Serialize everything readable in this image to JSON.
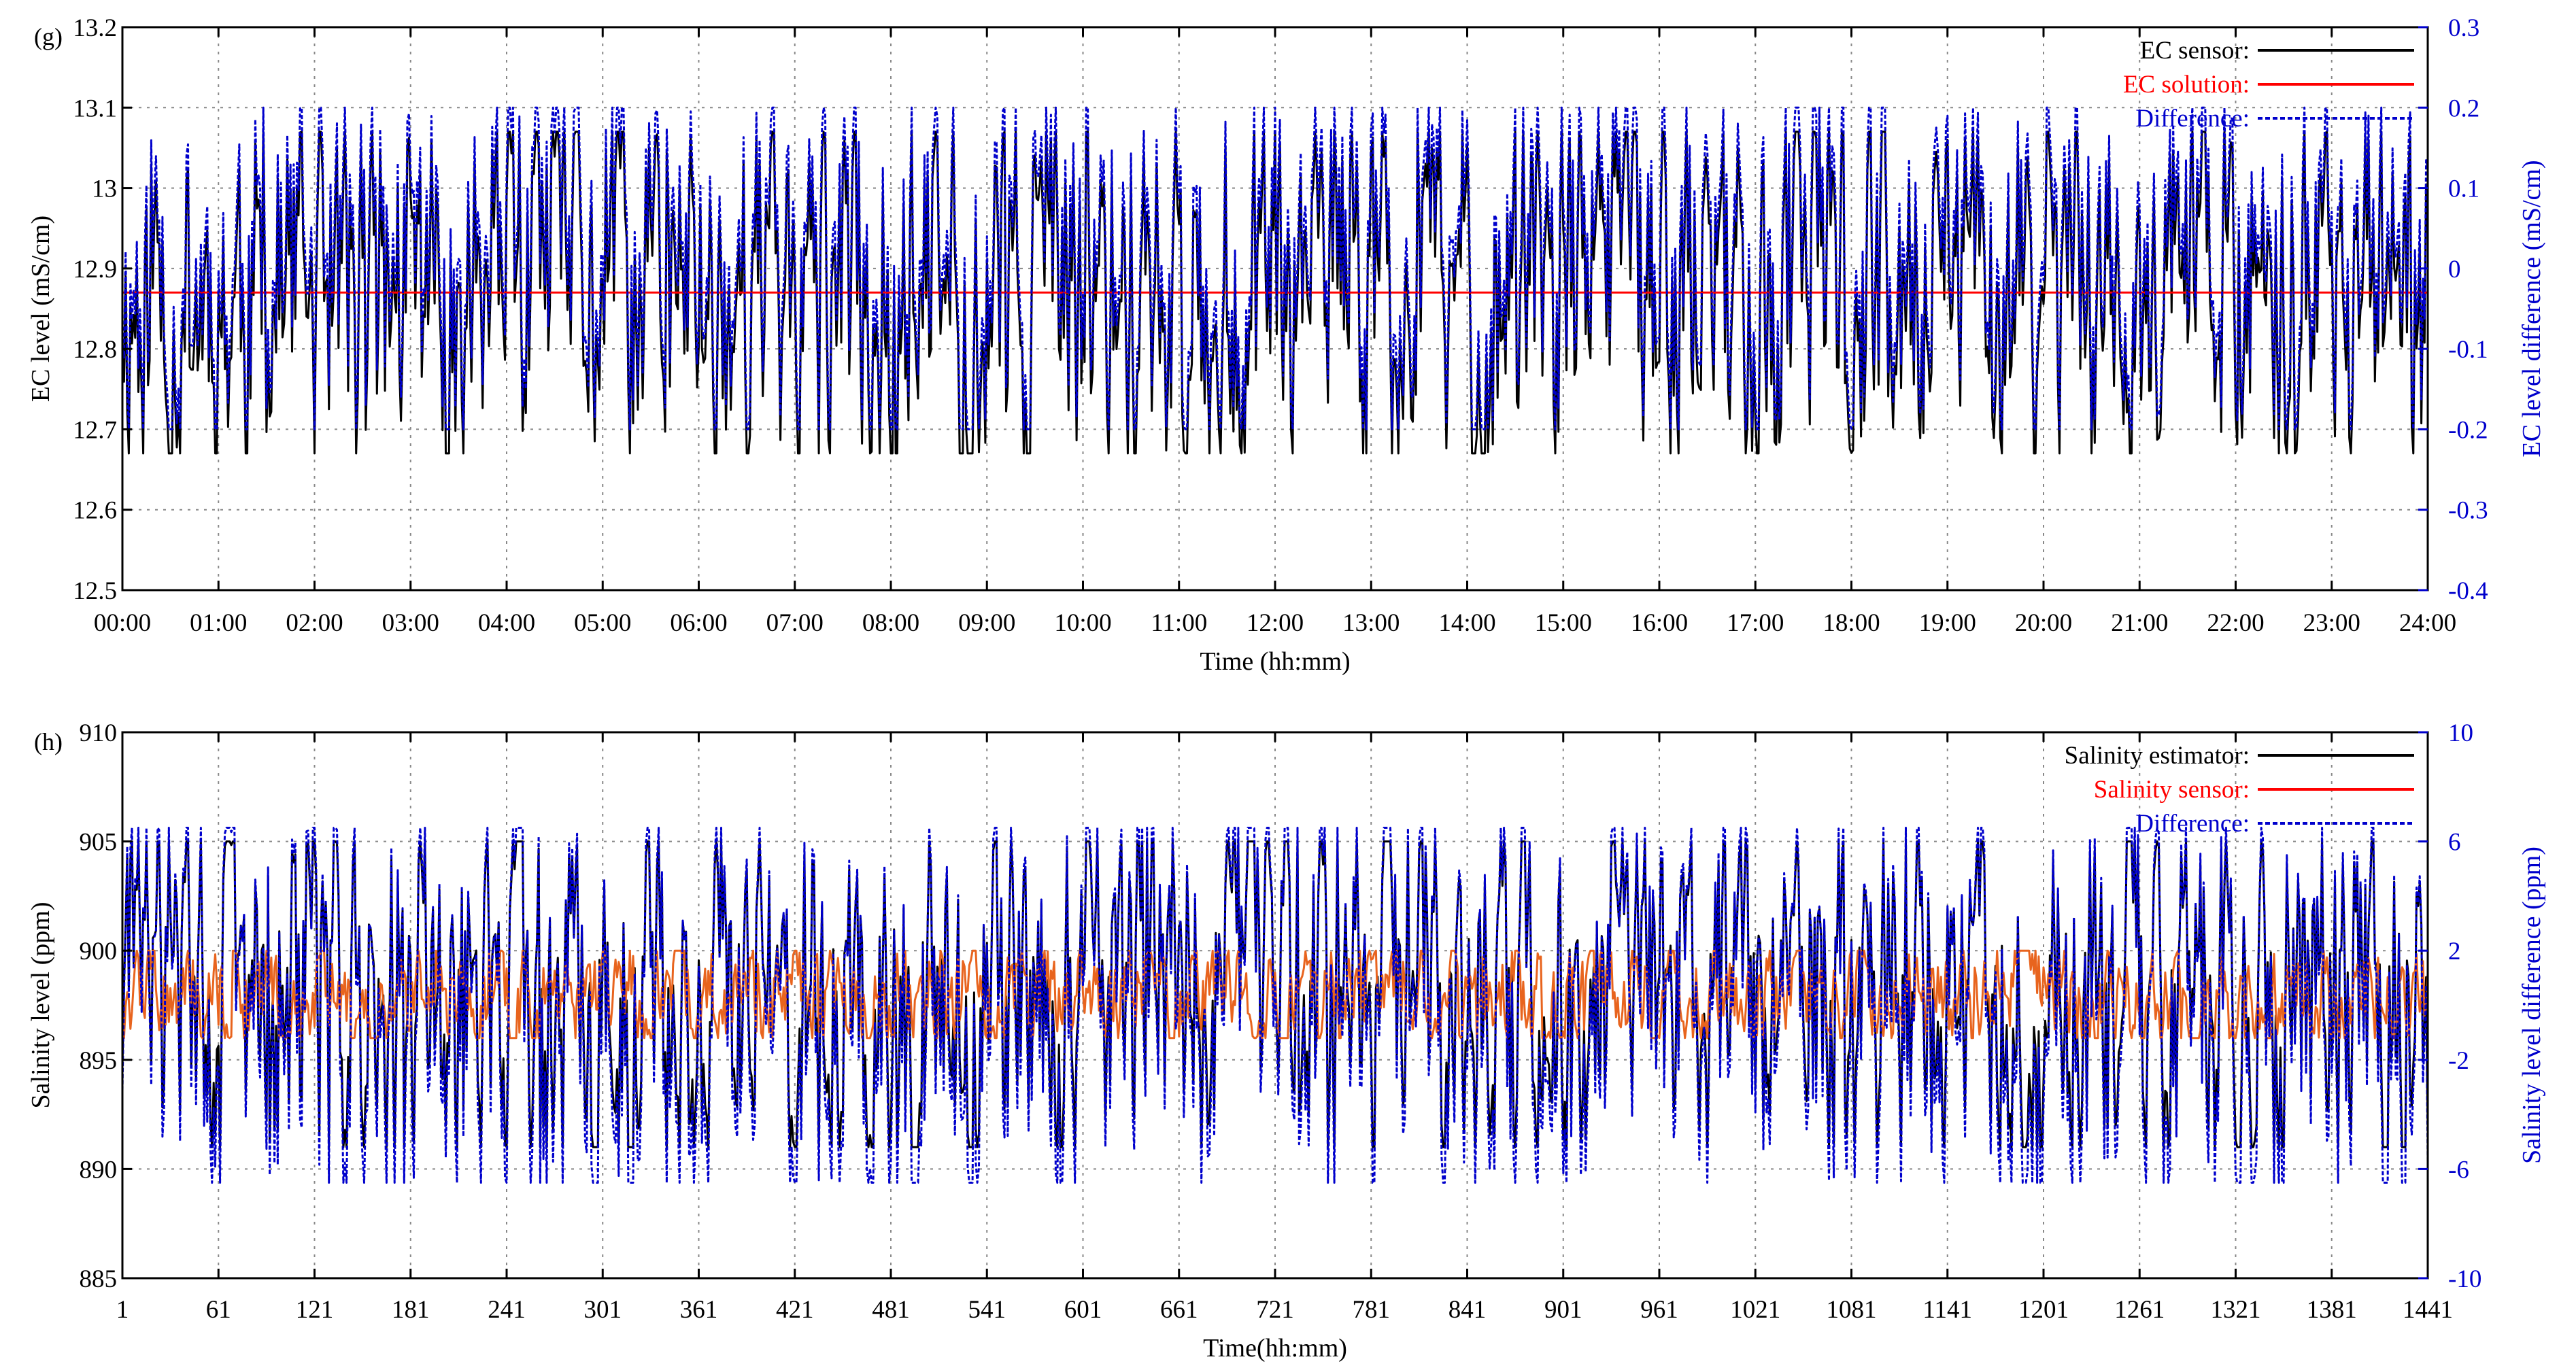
{
  "chart_data": [
    {
      "type": "line",
      "panel_label": "(g)",
      "xlabel": "Time (hh:mm)",
      "ylabel": "EC level (mS/cm)",
      "y2label": "EC level difference (mS/cm)",
      "x_ticks": [
        "00:00",
        "01:00",
        "02:00",
        "03:00",
        "04:00",
        "05:00",
        "06:00",
        "07:00",
        "08:00",
        "09:00",
        "10:00",
        "11:00",
        "12:00",
        "13:00",
        "14:00",
        "15:00",
        "16:00",
        "17:00",
        "18:00",
        "19:00",
        "20:00",
        "21:00",
        "22:00",
        "23:00",
        "24:00"
      ],
      "xlim": [
        0,
        24
      ],
      "ylim": [
        12.5,
        13.2
      ],
      "y_ticks": [
        "12.5",
        "12.6",
        "12.7",
        "12.8",
        "12.9",
        "13",
        "13.1",
        "13.2"
      ],
      "y2lim": [
        -0.4,
        0.3
      ],
      "y2_ticks": [
        "-0.4",
        "-0.3",
        "-0.2",
        "-0.1",
        "0",
        "0.1",
        "0.2",
        "0.3"
      ],
      "grid": true,
      "legend_position": "top-right",
      "series": [
        {
          "name": "EC sensor:",
          "axis": "left",
          "color": "#000000",
          "style": "solid",
          "mean": 12.87,
          "amplitude": 0.2,
          "seed": 11
        },
        {
          "name": "EC solution:",
          "axis": "left",
          "color": "#ff0000",
          "style": "solid",
          "constant": 12.87
        },
        {
          "name": "Difference:",
          "axis": "right",
          "color": "#0000cc",
          "style": "dashed",
          "mean": 0.0,
          "amplitude": 0.2,
          "seed": 11
        }
      ]
    },
    {
      "type": "line",
      "panel_label": "(h)",
      "xlabel": "Time(hh:mm)",
      "ylabel": "Salinity level (ppm)",
      "y2label": "Salinity level difference (ppm)",
      "x_ticks": [
        "1",
        "61",
        "121",
        "181",
        "241",
        "301",
        "361",
        "421",
        "481",
        "541",
        "601",
        "661",
        "721",
        "781",
        "841",
        "901",
        "961",
        "1021",
        "1081",
        "1141",
        "1201",
        "1261",
        "1321",
        "1381",
        "1441"
      ],
      "xlim": [
        1,
        1441
      ],
      "ylim": [
        885,
        910
      ],
      "y_ticks": [
        "885",
        "890",
        "895",
        "900",
        "905",
        "910"
      ],
      "y2lim": [
        -10,
        10
      ],
      "y2_ticks": [
        "-10",
        "-6",
        "-2",
        "2",
        "6",
        "10"
      ],
      "grid": true,
      "legend_position": "top-right",
      "series": [
        {
          "name": "Salinity estimator:",
          "axis": "left",
          "color": "#000000",
          "style": "solid",
          "mean": 898,
          "amplitude": 7,
          "seed": 29
        },
        {
          "name": "Salinity sensor:",
          "axis": "left",
          "color": "#e8641e",
          "legend_color": "#ff0000",
          "style": "solid",
          "mean": 898,
          "amplitude": 2,
          "seed": 47
        },
        {
          "name": "Difference:",
          "axis": "right",
          "color": "#0000cc",
          "style": "dashed",
          "mean": 0,
          "amplitude": 6.5,
          "seed": 29
        }
      ]
    }
  ]
}
